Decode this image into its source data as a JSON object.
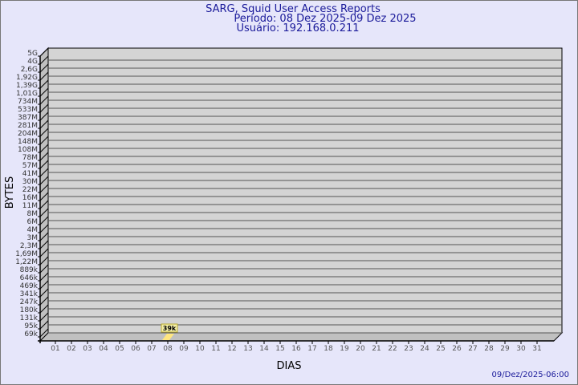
{
  "chart_data": {
    "type": "bar",
    "title": "SARG, Squid User Access Reports",
    "subtitle": [
      "Período: 08 Dez 2025-09 Dez 2025",
      "Usuário: 192.168.0.211"
    ],
    "xlabel": "DIAS",
    "ylabel": "BYTES",
    "y_scale": "log",
    "y_tick_labels": [
      "5G",
      "4G",
      "2,6G",
      "1,92G",
      "1,39G",
      "1,01G",
      "734M",
      "533M",
      "387M",
      "281M",
      "204M",
      "148M",
      "108M",
      "78M",
      "57M",
      "41M",
      "30M",
      "22M",
      "16M",
      "11M",
      "8M",
      "6M",
      "4M",
      "3M",
      "2,3M",
      "1,69M",
      "1,22M",
      "889k",
      "646k",
      "469k",
      "341k",
      "247k",
      "180k",
      "131k",
      "95k",
      "69k"
    ],
    "categories": [
      "01",
      "02",
      "03",
      "04",
      "05",
      "06",
      "07",
      "08",
      "09",
      "10",
      "11",
      "12",
      "13",
      "14",
      "15",
      "16",
      "17",
      "18",
      "19",
      "20",
      "21",
      "22",
      "23",
      "24",
      "25",
      "26",
      "27",
      "28",
      "29",
      "30",
      "31"
    ],
    "bars": [
      {
        "category": "08",
        "value": 39000,
        "label": "39k"
      }
    ],
    "grid": true,
    "colors": {
      "background": "#e6e6fa",
      "plot": "#d4d4d4",
      "bar": "#ffe680",
      "text": "#1a1a9a"
    }
  },
  "footer": {
    "timestamp": "09/Dez/2025-06:00"
  }
}
